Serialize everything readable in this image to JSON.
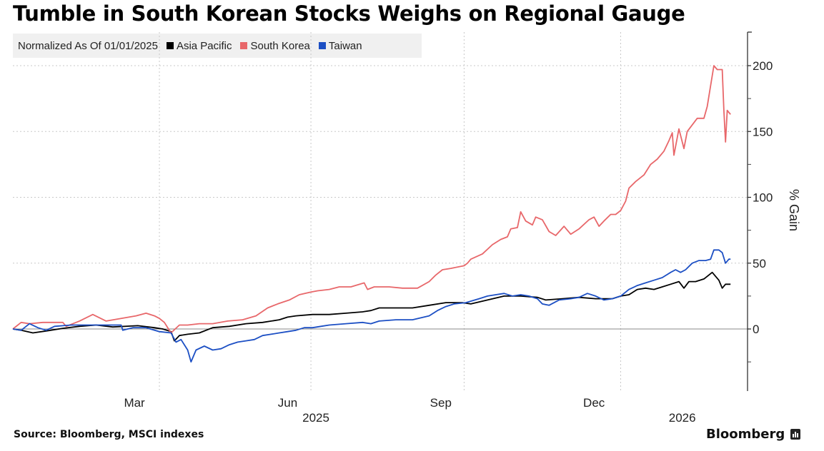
{
  "chart_data": {
    "type": "line",
    "title": "Tumble in South Korean Stocks Weighs on Regional Gauge",
    "subtitle": "Normalized As Of 01/01/2025",
    "xlabel": "",
    "ylabel": "% Gain",
    "x_unit": "days since 2025-01-01",
    "xlim": [
      0,
      431
    ],
    "ylim": [
      -47,
      225
    ],
    "yticks": [
      0,
      50,
      100,
      150,
      200
    ],
    "yminor_ticks": [
      -25,
      25,
      75,
      125,
      175
    ],
    "grid": true,
    "legend": "top-left",
    "x_gridlines": [
      88,
      179,
      271,
      365
    ],
    "month_labels": [
      {
        "label": "Mar",
        "day": 73
      },
      {
        "label": "Jun",
        "day": 165
      },
      {
        "label": "Sep",
        "day": 257
      },
      {
        "label": "Dec",
        "day": 349
      }
    ],
    "year_labels": [
      {
        "label": "2025",
        "day": 182
      },
      {
        "label": "2026",
        "day": 402
      }
    ],
    "series": [
      {
        "name": "Asia Pacific",
        "color": "#000000",
        "points": [
          [
            0,
            0
          ],
          [
            5,
            -1
          ],
          [
            12,
            -3
          ],
          [
            20,
            -1.5
          ],
          [
            30,
            0.5
          ],
          [
            40,
            2
          ],
          [
            50,
            3
          ],
          [
            60,
            1.5
          ],
          [
            75,
            2.5
          ],
          [
            85,
            1
          ],
          [
            90,
            0
          ],
          [
            95,
            -2
          ],
          [
            97,
            -9
          ],
          [
            100,
            -5
          ],
          [
            105,
            -4
          ],
          [
            112,
            -3
          ],
          [
            120,
            1
          ],
          [
            130,
            2
          ],
          [
            140,
            4
          ],
          [
            150,
            5
          ],
          [
            160,
            7
          ],
          [
            165,
            9
          ],
          [
            170,
            10
          ],
          [
            180,
            11
          ],
          [
            190,
            11
          ],
          [
            200,
            12
          ],
          [
            210,
            13
          ],
          [
            215,
            14
          ],
          [
            220,
            16
          ],
          [
            230,
            16
          ],
          [
            240,
            16
          ],
          [
            250,
            18
          ],
          [
            260,
            20
          ],
          [
            270,
            20
          ],
          [
            275,
            19
          ],
          [
            285,
            22
          ],
          [
            295,
            25
          ],
          [
            305,
            25
          ],
          [
            315,
            24
          ],
          [
            320,
            22
          ],
          [
            330,
            23
          ],
          [
            340,
            24
          ],
          [
            350,
            23
          ],
          [
            360,
            23
          ],
          [
            365,
            25
          ],
          [
            370,
            26
          ],
          [
            375,
            30
          ],
          [
            380,
            31
          ],
          [
            385,
            30
          ],
          [
            390,
            32
          ],
          [
            395,
            34
          ],
          [
            400,
            36
          ],
          [
            403,
            31
          ],
          [
            406,
            36
          ],
          [
            410,
            36
          ],
          [
            415,
            38
          ],
          [
            420,
            43
          ],
          [
            424,
            37
          ],
          [
            426,
            31
          ],
          [
            428,
            34
          ],
          [
            431,
            34
          ]
        ]
      },
      {
        "name": "South Korea",
        "color": "#e8676a",
        "points": [
          [
            0,
            0
          ],
          [
            5,
            5
          ],
          [
            10,
            4
          ],
          [
            18,
            5
          ],
          [
            30,
            5
          ],
          [
            32,
            2
          ],
          [
            40,
            6
          ],
          [
            48,
            11
          ],
          [
            56,
            6
          ],
          [
            65,
            8
          ],
          [
            74,
            10
          ],
          [
            80,
            12
          ],
          [
            85,
            10
          ],
          [
            88,
            8
          ],
          [
            91,
            5
          ],
          [
            95,
            -3
          ],
          [
            100,
            3
          ],
          [
            105,
            3
          ],
          [
            112,
            4
          ],
          [
            120,
            4
          ],
          [
            129,
            6
          ],
          [
            138,
            7
          ],
          [
            146,
            10
          ],
          [
            153,
            16
          ],
          [
            159,
            19
          ],
          [
            166,
            22
          ],
          [
            172,
            26
          ],
          [
            179,
            28
          ],
          [
            183,
            29
          ],
          [
            190,
            30
          ],
          [
            196,
            32
          ],
          [
            203,
            32
          ],
          [
            211,
            35
          ],
          [
            213,
            30
          ],
          [
            217,
            32
          ],
          [
            226,
            32
          ],
          [
            234,
            31
          ],
          [
            243,
            31
          ],
          [
            250,
            36
          ],
          [
            254,
            41
          ],
          [
            258,
            45
          ],
          [
            263,
            46
          ],
          [
            271,
            48
          ],
          [
            273,
            50
          ],
          [
            275,
            53
          ],
          [
            282,
            57
          ],
          [
            288,
            64
          ],
          [
            293,
            68
          ],
          [
            297,
            70
          ],
          [
            299,
            76
          ],
          [
            303,
            77
          ],
          [
            305,
            89
          ],
          [
            308,
            82
          ],
          [
            312,
            79
          ],
          [
            314,
            85
          ],
          [
            318,
            83
          ],
          [
            322,
            74
          ],
          [
            326,
            71
          ],
          [
            331,
            78
          ],
          [
            335,
            72
          ],
          [
            340,
            76
          ],
          [
            346,
            83
          ],
          [
            349,
            85
          ],
          [
            352,
            78
          ],
          [
            355,
            82
          ],
          [
            359,
            87
          ],
          [
            362,
            87
          ],
          [
            365,
            90
          ],
          [
            368,
            97
          ],
          [
            370,
            107
          ],
          [
            374,
            112
          ],
          [
            379,
            117
          ],
          [
            383,
            125
          ],
          [
            387,
            129
          ],
          [
            391,
            135
          ],
          [
            394,
            143
          ],
          [
            396,
            149
          ],
          [
            397,
            132
          ],
          [
            400,
            152
          ],
          [
            403,
            137
          ],
          [
            405,
            150
          ],
          [
            411,
            160
          ],
          [
            415,
            160
          ],
          [
            417,
            169
          ],
          [
            421,
            200
          ],
          [
            423,
            197
          ],
          [
            426,
            197
          ],
          [
            427,
            166
          ],
          [
            428,
            142
          ],
          [
            429,
            166
          ],
          [
            431,
            163
          ]
        ]
      },
      {
        "name": "Taiwan",
        "color": "#1c4fc4",
        "points": [
          [
            0,
            0
          ],
          [
            5,
            -1
          ],
          [
            10,
            4
          ],
          [
            15,
            1
          ],
          [
            20,
            -1
          ],
          [
            25,
            2
          ],
          [
            35,
            3
          ],
          [
            45,
            3
          ],
          [
            55,
            3
          ],
          [
            65,
            3
          ],
          [
            66,
            -1
          ],
          [
            72,
            1
          ],
          [
            80,
            1
          ],
          [
            88,
            -2
          ],
          [
            95,
            -3
          ],
          [
            98,
            -10
          ],
          [
            101,
            -8
          ],
          [
            105,
            -16
          ],
          [
            107,
            -25
          ],
          [
            110,
            -16
          ],
          [
            115,
            -13
          ],
          [
            120,
            -16
          ],
          [
            125,
            -15
          ],
          [
            130,
            -12
          ],
          [
            135,
            -10
          ],
          [
            140,
            -9
          ],
          [
            145,
            -8
          ],
          [
            150,
            -5
          ],
          [
            155,
            -4
          ],
          [
            160,
            -3
          ],
          [
            165,
            -2
          ],
          [
            170,
            -1
          ],
          [
            175,
            1
          ],
          [
            180,
            1
          ],
          [
            185,
            2
          ],
          [
            190,
            3
          ],
          [
            200,
            4
          ],
          [
            210,
            5
          ],
          [
            215,
            4
          ],
          [
            220,
            6
          ],
          [
            230,
            7
          ],
          [
            240,
            7
          ],
          [
            250,
            10
          ],
          [
            255,
            14
          ],
          [
            260,
            17
          ],
          [
            265,
            19
          ],
          [
            272,
            20
          ],
          [
            280,
            23
          ],
          [
            285,
            25
          ],
          [
            290,
            26
          ],
          [
            295,
            27
          ],
          [
            300,
            25
          ],
          [
            305,
            26
          ],
          [
            310,
            25
          ],
          [
            315,
            23
          ],
          [
            318,
            19
          ],
          [
            322,
            18
          ],
          [
            328,
            22
          ],
          [
            335,
            23
          ],
          [
            340,
            24
          ],
          [
            345,
            27
          ],
          [
            350,
            25
          ],
          [
            355,
            22
          ],
          [
            360,
            23
          ],
          [
            365,
            25
          ],
          [
            370,
            30
          ],
          [
            375,
            33
          ],
          [
            380,
            35
          ],
          [
            385,
            37
          ],
          [
            390,
            39
          ],
          [
            395,
            43
          ],
          [
            398,
            45
          ],
          [
            401,
            43
          ],
          [
            404,
            45
          ],
          [
            408,
            50
          ],
          [
            412,
            52
          ],
          [
            416,
            52
          ],
          [
            419,
            53
          ],
          [
            421,
            60
          ],
          [
            424,
            60
          ],
          [
            426,
            58
          ],
          [
            428,
            50
          ],
          [
            430,
            53
          ],
          [
            431,
            53
          ]
        ]
      }
    ]
  },
  "legend": {
    "normalized_label": "Normalized As Of 01/01/2025",
    "items": [
      {
        "label": "Asia Pacific",
        "color": "#000000"
      },
      {
        "label": "South Korea",
        "color": "#e8676a"
      },
      {
        "label": "Taiwan",
        "color": "#1c4fc4"
      }
    ]
  },
  "footer": {
    "source": "Source: Bloomberg, MSCI indexes",
    "brand": "Bloomberg"
  }
}
